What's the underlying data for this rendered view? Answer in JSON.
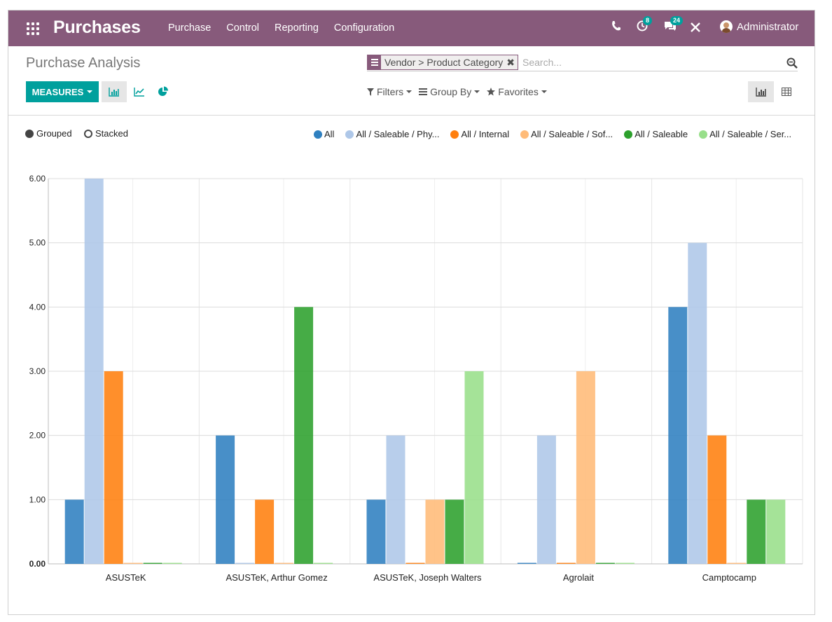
{
  "navbar": {
    "app_name": "Purchases",
    "menu": [
      "Purchase",
      "Control",
      "Reporting",
      "Configuration"
    ],
    "activity_badge": "8",
    "messages_badge": "24",
    "user_name": "Administrator"
  },
  "control_panel": {
    "breadcrumb": "Purchase Analysis",
    "search": {
      "facet": "Vendor > Product Category",
      "placeholder": "Search..."
    },
    "measures_label": "MEASURES",
    "filters_label": "Filters",
    "group_by_label": "Group By",
    "favorites_label": "Favorites"
  },
  "chart_options": {
    "grouped_label": "Grouped",
    "stacked_label": "Stacked"
  },
  "colors": {
    "navbar": "#875a7b",
    "primary_button": "#00a09d"
  },
  "chart_data": {
    "type": "bar",
    "categories": [
      "ASUSTeK",
      "ASUSTeK, Arthur Gomez",
      "ASUSTeK, Joseph Walters",
      "Agrolait",
      "Camptocamp"
    ],
    "series": [
      {
        "name": "All",
        "color": "#2f80c0",
        "values": [
          1,
          2,
          1,
          0,
          4
        ]
      },
      {
        "name": "All / Saleable / Phy...",
        "color": "#aec7e8",
        "values": [
          6,
          0,
          2,
          2,
          5
        ]
      },
      {
        "name": "All / Internal",
        "color": "#ff7f0e",
        "values": [
          3,
          1,
          0,
          0,
          2
        ]
      },
      {
        "name": "All / Saleable / Sof...",
        "color": "#ffbb78",
        "values": [
          0,
          0,
          1,
          3,
          0
        ]
      },
      {
        "name": "All / Saleable",
        "color": "#2ca02c",
        "values": [
          0,
          4,
          1,
          0,
          1
        ]
      },
      {
        "name": "All / Saleable / Ser...",
        "color": "#98df8a",
        "values": [
          0,
          0,
          3,
          0,
          1
        ]
      }
    ],
    "ylim": [
      0,
      6
    ],
    "yticks": [
      "0.00",
      "1.00",
      "2.00",
      "3.00",
      "4.00",
      "5.00",
      "6.00"
    ],
    "mode": "grouped",
    "legend_position": "top-right",
    "grid": true
  }
}
